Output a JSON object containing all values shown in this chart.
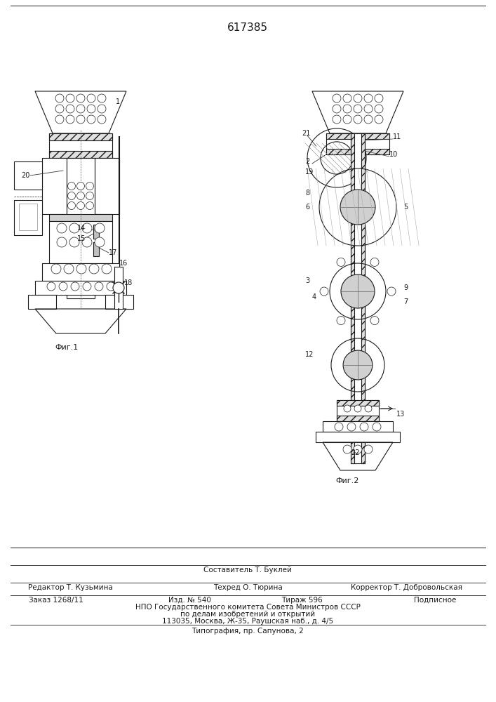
{
  "title": "617385",
  "fig1_label": "Фиг.1",
  "fig2_label": "Фиг.2",
  "footer": {
    "compiler": "Составитель Т. Буклей",
    "editor": "Редактор Т. Кузьмина",
    "techred": "Техред О. Тюрина",
    "corrector": "Корректор Т. Добровольская",
    "order": "Заказ 1268/11",
    "izdanie": "Изд. № 540",
    "tirazh": "Тираж 596",
    "podpisnoe": "Подписное",
    "npo": "НПО Государственного комитета Совета Министров СССР",
    "dela": "по делам изобретений и открытий",
    "address": "113035, Москва, Ж-35, Раушская наб., д. 4/5",
    "tipografia": "Типография, пр. Сапунова, 2"
  },
  "bg_color": "#ffffff",
  "line_color": "#1a1a1a",
  "hatch_color": "#555555"
}
